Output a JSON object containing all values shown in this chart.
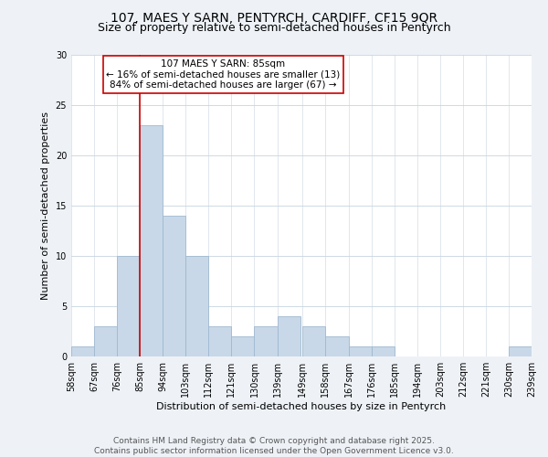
{
  "title": "107, MAES Y SARN, PENTYRCH, CARDIFF, CF15 9QR",
  "subtitle": "Size of property relative to semi-detached houses in Pentyrch",
  "xlabel": "Distribution of semi-detached houses by size in Pentyrch",
  "ylabel": "Number of semi-detached properties",
  "bin_edges": [
    58,
    67,
    76,
    85,
    94,
    103,
    112,
    121,
    130,
    139,
    149,
    158,
    167,
    176,
    185,
    194,
    203,
    212,
    221,
    230,
    239
  ],
  "counts": [
    1,
    3,
    10,
    23,
    14,
    10,
    3,
    2,
    3,
    4,
    3,
    2,
    1,
    1,
    0,
    0,
    0,
    0,
    0,
    1
  ],
  "bar_color": "#c8d8e8",
  "bar_edgecolor": "#a0b8d0",
  "vline_x": 85,
  "vline_color": "#cc0000",
  "annotation_title": "107 MAES Y SARN: 85sqm",
  "annotation_line1": "← 16% of semi-detached houses are smaller (13)",
  "annotation_line2": "84% of semi-detached houses are larger (67) →",
  "annotation_box_color": "#ffffff",
  "annotation_box_edgecolor": "#cc0000",
  "ylim": [
    0,
    30
  ],
  "yticks": [
    0,
    5,
    10,
    15,
    20,
    25,
    30
  ],
  "tick_labels": [
    "58sqm",
    "67sqm",
    "76sqm",
    "85sqm",
    "94sqm",
    "103sqm",
    "112sqm",
    "121sqm",
    "130sqm",
    "139sqm",
    "149sqm",
    "158sqm",
    "167sqm",
    "176sqm",
    "185sqm",
    "194sqm",
    "203sqm",
    "212sqm",
    "221sqm",
    "230sqm",
    "239sqm"
  ],
  "footer_line1": "Contains HM Land Registry data © Crown copyright and database right 2025.",
  "footer_line2": "Contains public sector information licensed under the Open Government Licence v3.0.",
  "background_color": "#eef2f7",
  "plot_background": "#ffffff",
  "grid_color": "#c8d4e0",
  "title_fontsize": 10,
  "subtitle_fontsize": 9,
  "axis_label_fontsize": 8,
  "tick_fontsize": 7,
  "annotation_fontsize": 7.5,
  "footer_fontsize": 6.5
}
